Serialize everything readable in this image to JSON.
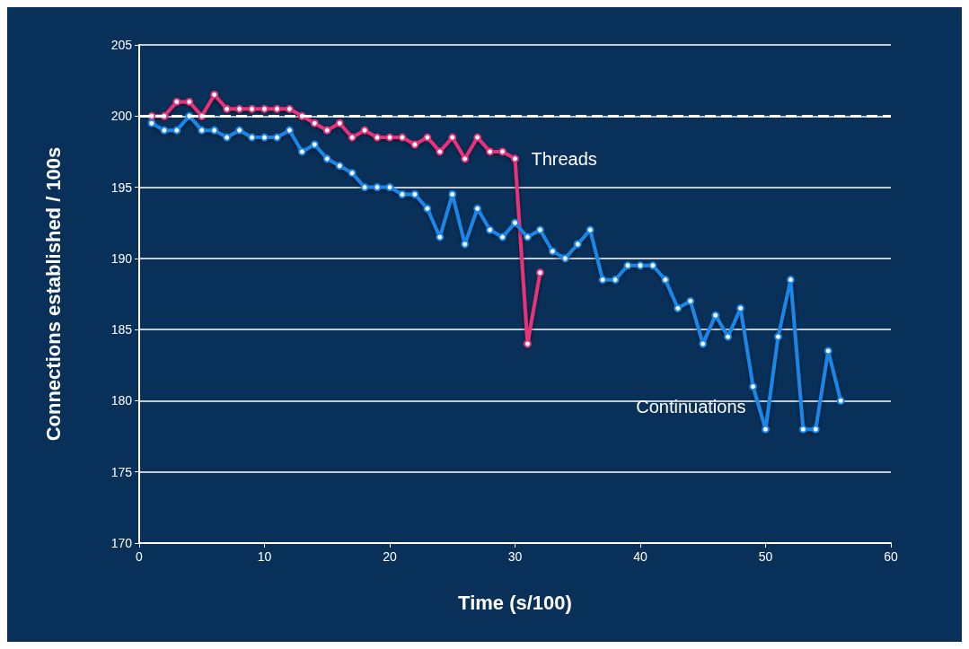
{
  "chart_data": {
    "type": "line",
    "xlabel": "Time (s/100)",
    "ylabel": "Connections established / 100s",
    "xlim": [
      0,
      60
    ],
    "xticks": [
      0,
      10,
      20,
      30,
      40,
      50,
      60
    ],
    "ylim": [
      170,
      205
    ],
    "yticks": [
      170,
      175,
      180,
      185,
      190,
      195,
      200,
      205
    ],
    "grid": "y",
    "legend": false,
    "marker": "circle",
    "line_style": "solid",
    "ref_lines": [
      {
        "axis": "y",
        "value": 200,
        "color": "#ffffff",
        "line_style": "dashed"
      }
    ],
    "series": [
      {
        "name": "Threads",
        "color": "#e8307a",
        "x": [
          1,
          2,
          3,
          4,
          5,
          6,
          7,
          8,
          9,
          10,
          11,
          12,
          13,
          14,
          15,
          16,
          17,
          18,
          19,
          20,
          21,
          22,
          23,
          24,
          25,
          26,
          27,
          28,
          29,
          30,
          31,
          32
        ],
        "values": [
          200,
          200,
          201,
          201,
          200,
          201.5,
          200.5,
          200.5,
          200.5,
          200.5,
          200.5,
          200.5,
          200,
          199.5,
          199,
          199.5,
          198.5,
          199,
          198.5,
          198.5,
          198.5,
          198,
          198.5,
          197.5,
          198.5,
          197,
          198.5,
          197.5,
          197.5,
          197,
          184,
          189
        ]
      },
      {
        "name": "Continuations",
        "color": "#1a86e8",
        "x": [
          1,
          2,
          3,
          4,
          5,
          6,
          7,
          8,
          9,
          10,
          11,
          12,
          13,
          14,
          15,
          16,
          17,
          18,
          19,
          20,
          21,
          22,
          23,
          24,
          25,
          26,
          27,
          28,
          29,
          30,
          31,
          32,
          33,
          34,
          35,
          36,
          37,
          38,
          39,
          40,
          41,
          42,
          43,
          44,
          45,
          46,
          47,
          48,
          49,
          50,
          51,
          52,
          53,
          54,
          55,
          56
        ],
        "values": [
          199.5,
          199,
          199,
          200,
          199,
          199,
          198.5,
          199,
          198.5,
          198.5,
          198.5,
          199,
          197.5,
          198,
          197,
          196.5,
          196,
          195,
          195,
          195,
          194.5,
          194.5,
          193.5,
          191.5,
          194.5,
          191,
          193.5,
          192,
          191.5,
          192.5,
          191.5,
          192,
          190.5,
          190,
          191,
          192,
          188.5,
          188.5,
          189.5,
          189.5,
          189.5,
          188.5,
          186.5,
          187,
          184,
          186,
          184.5,
          186.5,
          181,
          178,
          184.5,
          188.5,
          178,
          178,
          183.5,
          180
        ]
      }
    ]
  }
}
